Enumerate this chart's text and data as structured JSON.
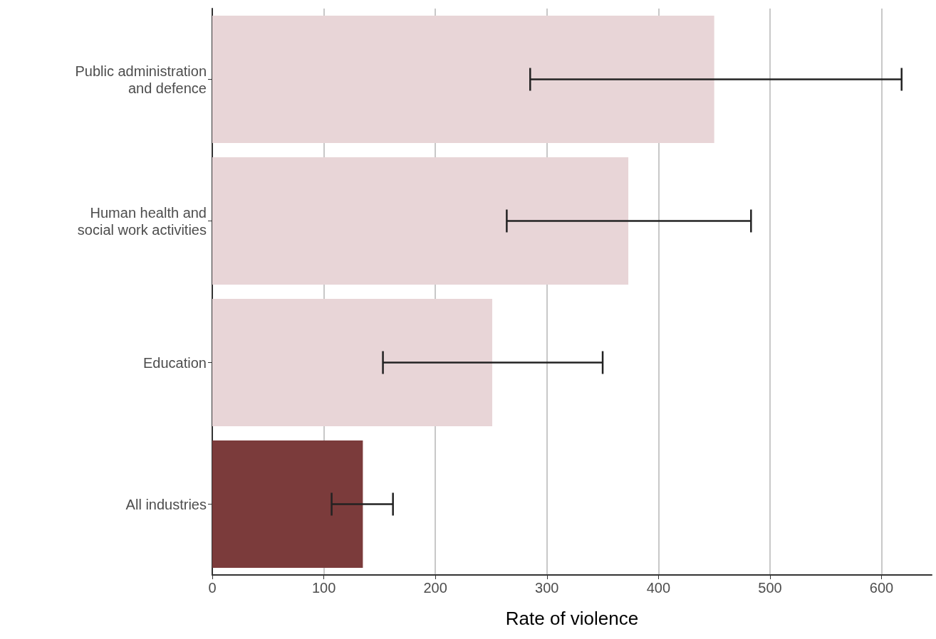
{
  "chart_data": {
    "type": "bar",
    "orientation": "horizontal",
    "xlabel": "Rate of violence",
    "categories": [
      "Public administration\nand defence",
      "Human health and\nsocial work activities",
      "Education",
      "All industries"
    ],
    "values": [
      450,
      373,
      251,
      135
    ],
    "colors": [
      "#e8d5d7",
      "#e8d5d7",
      "#e8d5d7",
      "#7b3b3b"
    ],
    "errors": [
      [
        285,
        618
      ],
      [
        264,
        483
      ],
      [
        153,
        350
      ],
      [
        107,
        162
      ]
    ],
    "xlim": [
      0,
      645
    ],
    "xticks": [
      0,
      100,
      200,
      300,
      400,
      500,
      600
    ],
    "grid": "x"
  }
}
